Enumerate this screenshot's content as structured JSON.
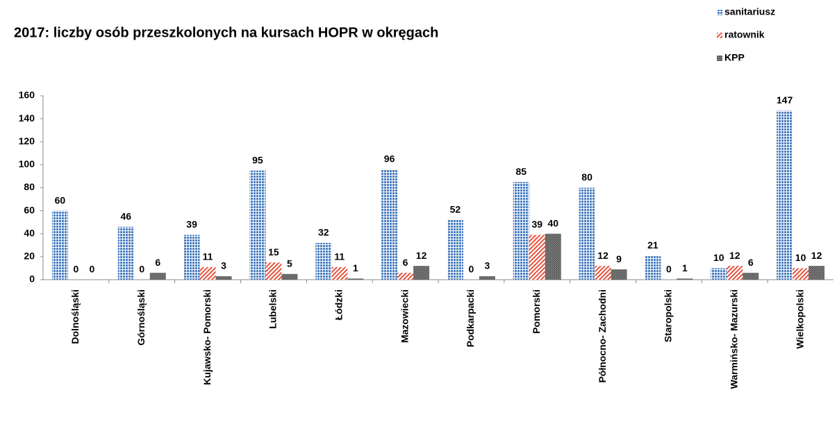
{
  "chart_data": {
    "type": "bar",
    "title": "2017: liczby osób przeszkolonych na kursach HOPR w okręgach",
    "categories": [
      "Dolnośląski",
      "Górnośląski",
      "Kujawsko- Pomorski",
      "Lubelski",
      "Łódzki",
      "Mazowiecki",
      "Podkarpacki",
      "Pomorski",
      "Północno- Zachodni",
      "Staropolski",
      "Warmińsko- Mazurski",
      "Wielkopolski"
    ],
    "series": [
      {
        "name": "sanitariusz",
        "color": "#4a7fc1",
        "values": [
          60,
          46,
          39,
          95,
          32,
          96,
          52,
          85,
          80,
          21,
          10,
          147
        ]
      },
      {
        "name": "ratownik",
        "color": "#e8503a",
        "values": [
          0,
          0,
          11,
          15,
          11,
          6,
          0,
          39,
          12,
          0,
          12,
          10
        ]
      },
      {
        "name": "KPP",
        "color": "#555555",
        "values": [
          0,
          6,
          3,
          5,
          1,
          12,
          3,
          40,
          9,
          1,
          6,
          12
        ]
      }
    ],
    "ylim": [
      0,
      160
    ],
    "yticks": [
      0,
      20,
      40,
      60,
      80,
      100,
      120,
      140,
      160
    ],
    "grid": false,
    "legend": "top-right"
  }
}
